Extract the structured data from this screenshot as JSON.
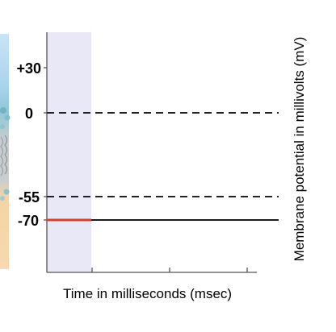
{
  "diagram": {
    "y_axis_label": "Membrane potential in millivolts (mV)",
    "x_axis_label": "Time in milliseconds (msec)",
    "y_ticks": [
      {
        "value": 30,
        "label": "+30"
      },
      {
        "value": 0,
        "label": "0"
      },
      {
        "value": -55,
        "label": "-55"
      },
      {
        "value": -70,
        "label": "-70"
      }
    ],
    "reference_lines": [
      {
        "value": 0,
        "style": "dashed"
      },
      {
        "value": -55,
        "style": "dashed"
      }
    ],
    "resting_trace": {
      "value": -70,
      "highlight_color": "#d8402e",
      "line_color": "#1a1a1a"
    },
    "x_tick_count": 3,
    "colors": {
      "highlight_band": "#e8e8f6",
      "membrane_strip_top": "#a9d4ee",
      "membrane_strip_middle": "#b9c4c8",
      "membrane_strip_bottom": "#f7d6a8",
      "axis": "#555555"
    }
  }
}
